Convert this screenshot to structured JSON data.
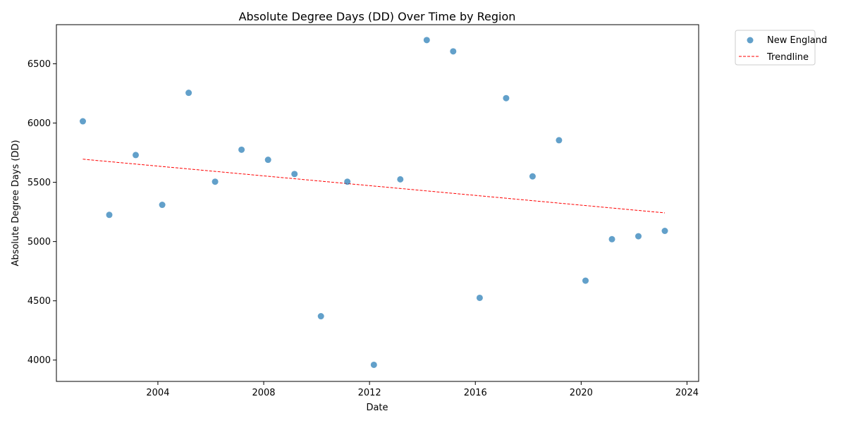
{
  "chart_data": {
    "type": "scatter",
    "title": "Absolute Degree Days (DD) Over Time by Region",
    "xlabel": "Date",
    "ylabel": "Absolute Degree Days (DD)",
    "x_range": [
      "2000-03-01",
      "2024-06-10"
    ],
    "ylim": [
      3820,
      6830
    ],
    "x_ticks": [
      "2004",
      "2008",
      "2012",
      "2016",
      "2020",
      "2024"
    ],
    "y_ticks": [
      4000,
      4500,
      5000,
      5500,
      6000,
      6500
    ],
    "grid": false,
    "legend_position": "outside-top-right",
    "series": [
      {
        "name": "New England",
        "kind": "scatter",
        "color": "#1f77b4",
        "points": [
          {
            "x": "2001-03-01",
            "y": 6015
          },
          {
            "x": "2002-03-01",
            "y": 5225
          },
          {
            "x": "2003-03-01",
            "y": 5730
          },
          {
            "x": "2004-03-01",
            "y": 5310
          },
          {
            "x": "2005-03-01",
            "y": 6255
          },
          {
            "x": "2006-03-01",
            "y": 5505
          },
          {
            "x": "2007-03-01",
            "y": 5775
          },
          {
            "x": "2008-03-01",
            "y": 5690
          },
          {
            "x": "2009-03-01",
            "y": 5570
          },
          {
            "x": "2010-03-01",
            "y": 4370
          },
          {
            "x": "2011-03-01",
            "y": 5505
          },
          {
            "x": "2012-03-01",
            "y": 3960
          },
          {
            "x": "2013-03-01",
            "y": 5525
          },
          {
            "x": "2014-03-01",
            "y": 6700
          },
          {
            "x": "2015-03-01",
            "y": 6605
          },
          {
            "x": "2016-03-01",
            "y": 4525
          },
          {
            "x": "2017-03-01",
            "y": 6210
          },
          {
            "x": "2018-03-01",
            "y": 5550
          },
          {
            "x": "2019-03-01",
            "y": 5855
          },
          {
            "x": "2020-03-01",
            "y": 4670
          },
          {
            "x": "2021-03-01",
            "y": 5020
          },
          {
            "x": "2022-03-01",
            "y": 5045
          },
          {
            "x": "2023-03-01",
            "y": 5090
          }
        ]
      },
      {
        "name": "Trendline",
        "kind": "line",
        "color": "#ff0000",
        "dashed": true,
        "points": [
          {
            "x": "2001-03-01",
            "y": 5695
          },
          {
            "x": "2023-03-01",
            "y": 5242
          }
        ]
      }
    ]
  }
}
